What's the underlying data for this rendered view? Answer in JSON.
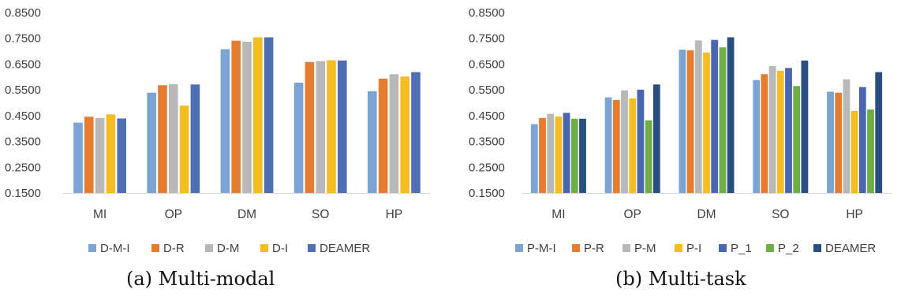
{
  "chart_data": [
    {
      "type": "bar",
      "caption": "(a) Multi-modal",
      "categories": [
        "MI",
        "OP",
        "DM",
        "SO",
        "HP"
      ],
      "ylim": [
        0.15,
        0.85
      ],
      "yticks": [
        "0.1500",
        "0.2500",
        "0.3500",
        "0.4500",
        "0.5500",
        "0.6500",
        "0.7500",
        "0.8500"
      ],
      "legend_position": "bottom",
      "grid": false,
      "series": [
        {
          "name": "D-M-I",
          "color": "#7ba3d4",
          "values": [
            0.423,
            0.539,
            0.708,
            0.578,
            0.545
          ]
        },
        {
          "name": "D-R",
          "color": "#e57c30",
          "values": [
            0.446,
            0.568,
            0.741,
            0.658,
            0.594
          ]
        },
        {
          "name": "D-M",
          "color": "#b8b8b8",
          "values": [
            0.441,
            0.572,
            0.737,
            0.662,
            0.611
          ]
        },
        {
          "name": "D-I",
          "color": "#f5bd22",
          "values": [
            0.455,
            0.489,
            0.754,
            0.665,
            0.602
          ]
        },
        {
          "name": "DEAMER",
          "color": "#4e6fb3",
          "values": [
            0.439,
            0.571,
            0.754,
            0.664,
            0.619
          ]
        }
      ]
    },
    {
      "type": "bar",
      "caption": "(b) Multi-task",
      "categories": [
        "MI",
        "OP",
        "DM",
        "SO",
        "HP"
      ],
      "ylim": [
        0.15,
        0.85
      ],
      "yticks": [
        "0.1500",
        "0.2500",
        "0.3500",
        "0.4500",
        "0.5500",
        "0.6500",
        "0.7500",
        "0.8500"
      ],
      "legend_position": "bottom",
      "grid": false,
      "series": [
        {
          "name": "P-M-I",
          "color": "#7ba3d4",
          "values": [
            0.417,
            0.521,
            0.706,
            0.588,
            0.543
          ]
        },
        {
          "name": "P-R",
          "color": "#e57c30",
          "values": [
            0.441,
            0.511,
            0.704,
            0.611,
            0.539
          ]
        },
        {
          "name": "P-M",
          "color": "#b8b8b8",
          "values": [
            0.457,
            0.548,
            0.742,
            0.642,
            0.591
          ]
        },
        {
          "name": "P-I",
          "color": "#f5bd22",
          "values": [
            0.447,
            0.517,
            0.695,
            0.624,
            0.468
          ]
        },
        {
          "name": "P_1",
          "color": "#4a65b1",
          "values": [
            0.461,
            0.551,
            0.744,
            0.635,
            0.561
          ]
        },
        {
          "name": "P_2",
          "color": "#6fad47",
          "values": [
            0.438,
            0.432,
            0.715,
            0.565,
            0.474
          ]
        },
        {
          "name": "DEAMER",
          "color": "#284f80",
          "values": [
            0.438,
            0.571,
            0.754,
            0.664,
            0.619
          ]
        }
      ]
    }
  ]
}
